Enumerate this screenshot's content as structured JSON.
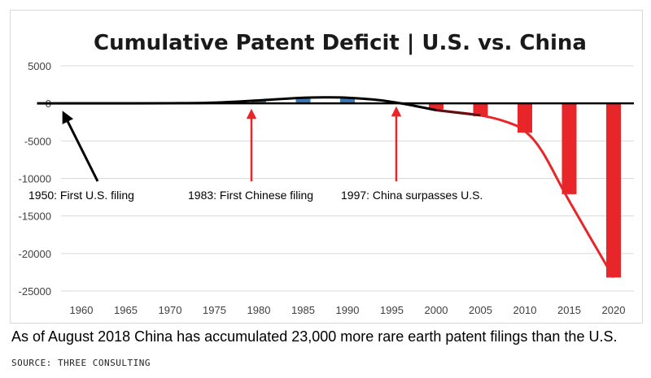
{
  "chart_data": {
    "type": "bar",
    "title": "Cumulative Patent Deficit | U.S. vs. China",
    "xlabel": "",
    "ylabel": "",
    "ylim": [
      -25000,
      5000
    ],
    "yticks": [
      5000,
      0,
      -5000,
      -10000,
      -15000,
      -20000,
      -25000
    ],
    "categories": [
      "1960",
      "1965",
      "1970",
      "1975",
      "1980",
      "1985",
      "1990",
      "1995",
      "2000",
      "2005",
      "2010",
      "2015",
      "2020"
    ],
    "values": [
      0,
      0,
      0,
      0,
      300,
      650,
      700,
      0,
      -800,
      -1700,
      -3900,
      -12100,
      -23200
    ],
    "bar_colors": {
      "positive": "#3e78b6",
      "negative": "#e8262a"
    },
    "trend_line": {
      "x": [
        1955,
        1960,
        1965,
        1970,
        1975,
        1980,
        1985,
        1988,
        1990,
        1993,
        1995,
        1997,
        2000,
        2005,
        2008,
        2010,
        2012,
        2015,
        2020
      ],
      "y": [
        0,
        0,
        0,
        20,
        100,
        400,
        750,
        800,
        750,
        500,
        200,
        -200,
        -900,
        -1600,
        -2500,
        -3700,
        -6500,
        -13000,
        -23200
      ],
      "colors": {
        "before": "#000000",
        "after": "#e8262a"
      }
    },
    "grid": true,
    "annotations": [
      {
        "text": "1950: First U.S. filing",
        "color": "#000000"
      },
      {
        "text": "1983: First Chinese filing",
        "color": "#e8262a"
      },
      {
        "text": "1997: China surpasses U.S.",
        "color": "#e8262a"
      }
    ]
  },
  "caption": "As of August 2018 China has accumulated 23,000 more rare earth patent filings than the U.S.",
  "source": "SOURCE: THREE CONSULTING"
}
